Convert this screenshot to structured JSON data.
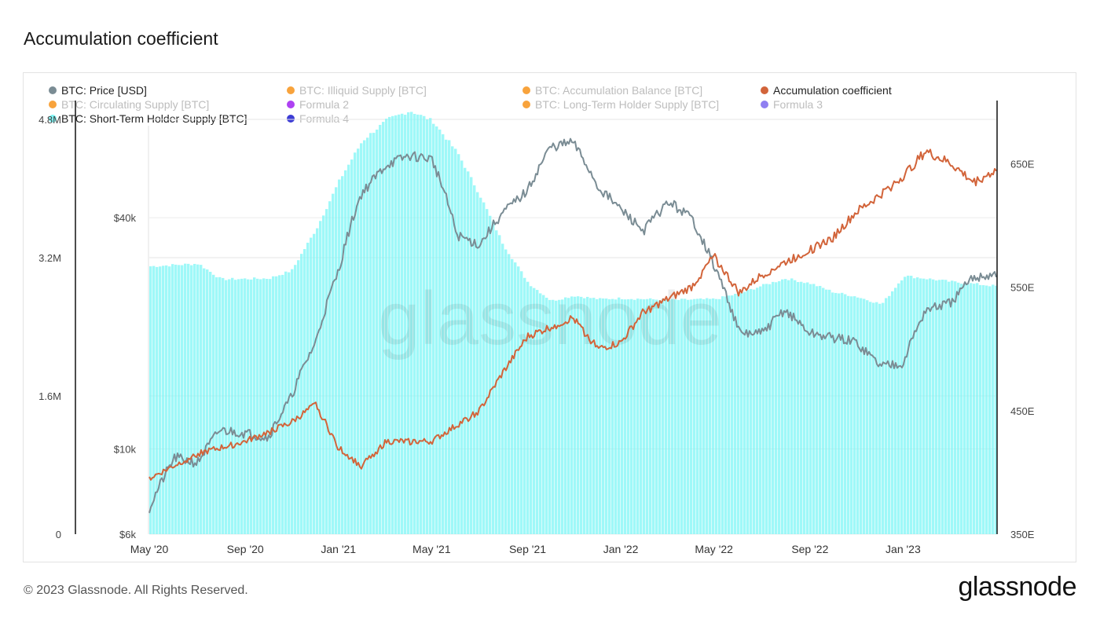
{
  "page": {
    "title": "Accumulation coefficient",
    "footer": "© 2023 Glassnode. All Rights Reserved.",
    "brand": "glassnode",
    "watermark": "glassnode"
  },
  "legend": [
    {
      "label": "BTC: Price [USD]",
      "color": "#7a8c94",
      "active": true
    },
    {
      "label": "BTC: Illiquid Supply [BTC]",
      "color": "#f7931a",
      "active": false
    },
    {
      "label": "BTC: Accumulation Balance [BTC]",
      "color": "#f7931a",
      "active": false
    },
    {
      "label": "Accumulation coefficient",
      "color": "#d2643a",
      "active": true
    },
    {
      "label": "BTC: Circulating Supply [BTC]",
      "color": "#f7931a",
      "active": false
    },
    {
      "label": "Formula 2",
      "color": "#a020f0",
      "active": false
    },
    {
      "label": "BTC: Long-Term Holder Supply [BTC]",
      "color": "#f7931a",
      "active": false
    },
    {
      "label": "Formula 3",
      "color": "#7b68ee",
      "active": false
    },
    {
      "label": "BTC: Short-Term Holder Supply [BTC]",
      "color": "#7ff5f5",
      "active": true
    },
    {
      "label": "Formula 4",
      "color": "#1a1acd",
      "active": false
    }
  ],
  "chart_data": {
    "type": "line",
    "title": "Accumulation coefficient",
    "x_ticks": [
      "May '20",
      "Sep '20",
      "Jan '21",
      "May '21",
      "Sep '21",
      "Jan '22",
      "May '22",
      "Sep '22",
      "Jan '23"
    ],
    "x_range": [
      2020.33,
      2023.33
    ],
    "axes": {
      "supply": {
        "ticks": [
          "0",
          "1.6M",
          "3.2M",
          "4.8M"
        ],
        "values": [
          0,
          1600000,
          3200000,
          4800000
        ],
        "range": [
          0,
          5000000
        ],
        "side": "left"
      },
      "price": {
        "ticks": [
          "$6k",
          "$10k",
          "$40k"
        ],
        "values": [
          6000,
          10000,
          40000
        ],
        "range": [
          6000,
          80000
        ],
        "scale": "log",
        "side": "left-inner"
      },
      "coefficient": {
        "ticks": [
          "350E",
          "450E",
          "550E",
          "650E"
        ],
        "values": [
          350,
          450,
          550,
          650
        ],
        "range": [
          350,
          700
        ],
        "side": "right"
      }
    },
    "series": [
      {
        "name": "BTC: Short-Term Holder Supply [BTC]",
        "axis": "supply",
        "type": "area",
        "color": "#7ff5f5",
        "x": [
          2020.33,
          2020.5,
          2020.58,
          2020.75,
          2020.83,
          2020.92,
          2021.0,
          2021.08,
          2021.17,
          2021.25,
          2021.33,
          2021.42,
          2021.5,
          2021.58,
          2021.67,
          2021.75,
          2021.83,
          2021.92,
          2022.0,
          2022.17,
          2022.33,
          2022.42,
          2022.5,
          2022.58,
          2022.67,
          2022.75,
          2022.83,
          2022.92,
          2023.0,
          2023.17,
          2023.33
        ],
        "values": [
          3100000,
          3130000,
          2950000,
          2960000,
          3050000,
          3550000,
          4100000,
          4550000,
          4800000,
          4900000,
          4780000,
          4400000,
          3900000,
          3350000,
          2900000,
          2700000,
          2760000,
          2720000,
          2730000,
          2710000,
          2720000,
          2790000,
          2880000,
          2960000,
          2900000,
          2800000,
          2750000,
          2660000,
          2990000,
          2920000,
          2870000
        ]
      },
      {
        "name": "BTC: Price [USD]",
        "axis": "price",
        "type": "line",
        "color": "#7a8c94",
        "x": [
          2020.33,
          2020.42,
          2020.5,
          2020.58,
          2020.67,
          2020.75,
          2020.83,
          2020.92,
          2021.0,
          2021.08,
          2021.17,
          2021.25,
          2021.33,
          2021.42,
          2021.5,
          2021.58,
          2021.67,
          2021.75,
          2021.83,
          2021.92,
          2022.0,
          2022.08,
          2022.17,
          2022.25,
          2022.33,
          2022.42,
          2022.5,
          2022.58,
          2022.67,
          2022.75,
          2022.83,
          2022.92,
          2023.0,
          2023.08,
          2023.17,
          2023.25,
          2023.33
        ],
        "values": [
          7000,
          9500,
          9200,
          11200,
          11000,
          10700,
          13500,
          19000,
          29000,
          46000,
          55000,
          58000,
          57000,
          36000,
          34000,
          41000,
          47000,
          61000,
          63000,
          48000,
          42000,
          37000,
          44000,
          40000,
          30000,
          20000,
          20000,
          23000,
          20000,
          19500,
          19000,
          16500,
          16800,
          23000,
          24000,
          28000,
          28500
        ]
      },
      {
        "name": "Accumulation coefficient",
        "axis": "coefficient",
        "type": "line",
        "color": "#d2643a",
        "x": [
          2020.33,
          2020.5,
          2020.67,
          2020.83,
          2020.92,
          2021.0,
          2021.08,
          2021.17,
          2021.33,
          2021.5,
          2021.58,
          2021.67,
          2021.83,
          2021.92,
          2022.0,
          2022.08,
          2022.25,
          2022.33,
          2022.42,
          2022.5,
          2022.58,
          2022.67,
          2022.75,
          2022.83,
          2022.92,
          2023.0,
          2023.08,
          2023.17,
          2023.25,
          2023.33
        ],
        "values": [
          395,
          415,
          425,
          440,
          455,
          420,
          405,
          425,
          425,
          450,
          480,
          510,
          525,
          500,
          505,
          530,
          550,
          575,
          545,
          560,
          570,
          580,
          590,
          610,
          625,
          640,
          660,
          650,
          635,
          645
        ]
      }
    ]
  }
}
